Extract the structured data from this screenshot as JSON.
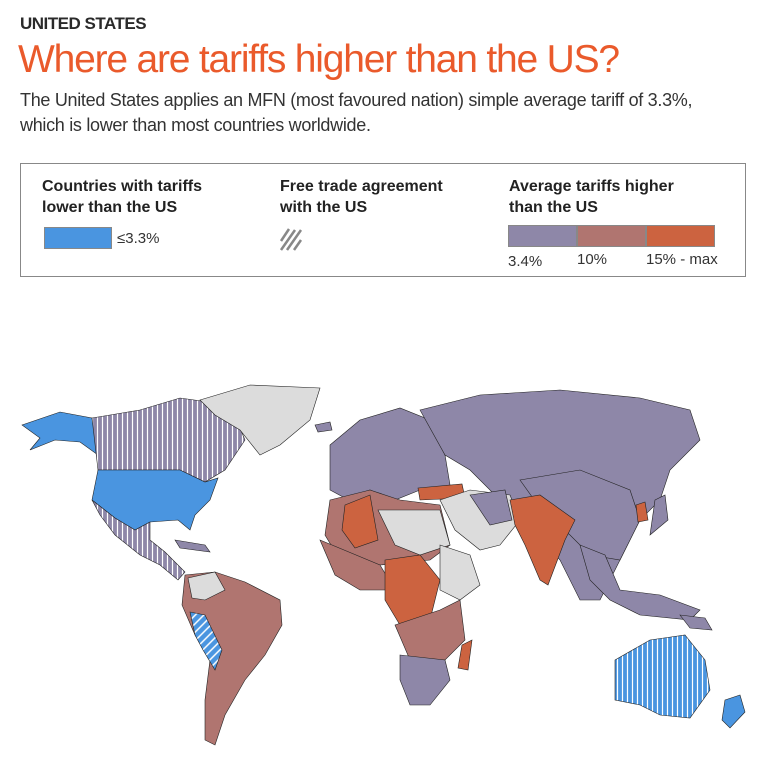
{
  "header": {
    "kicker": "UNITED STATES",
    "title": "Where are tariffs higher than the US?",
    "subtitle": "The United States applies an MFN (most favoured nation) simple average tariff of 3.3%, which is lower than most countries worldwide."
  },
  "legend": {
    "lower": {
      "title_1": "Countries with tariffs",
      "title_2": "lower than the US",
      "label": "≤3.3%",
      "color": "#4a95e0"
    },
    "fta": {
      "title_1": "Free trade agreement",
      "title_2": "with the US",
      "pattern": "diagonal-hatch"
    },
    "higher": {
      "title_1": "Average tariffs higher",
      "title_2": "than the US",
      "steps": [
        {
          "label": "3.4%",
          "color": "#8e87a8"
        },
        {
          "label": "10%",
          "color": "#b07570"
        },
        {
          "label": "15% - max",
          "color": "#cc6340"
        }
      ]
    }
  },
  "map": {
    "no_data_color": "#dcdcdc",
    "border_color": "#222222"
  }
}
